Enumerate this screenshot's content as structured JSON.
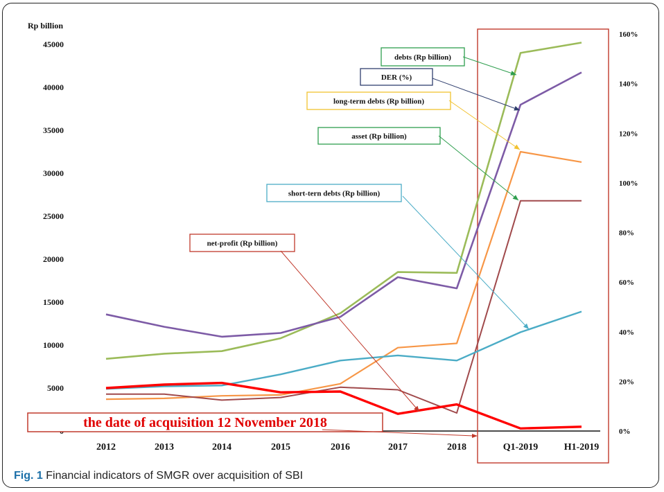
{
  "caption": {
    "label": "Fig. 1",
    "text": "Financial indicators of SMGR over acquisition of SBI"
  },
  "chart_data": {
    "type": "line",
    "title": "",
    "ylabel_left": "Rp billion",
    "ylabel_right": "",
    "ylim_left": [
      0,
      45000
    ],
    "ylim_right": [
      0,
      160
    ],
    "y_ticks_left": [
      0,
      5000,
      10000,
      15000,
      20000,
      25000,
      30000,
      35000,
      40000,
      45000
    ],
    "y_ticks_right": [
      "0%",
      "20%",
      "40%",
      "60%",
      "80%",
      "100%",
      "120%",
      "140%",
      "160%"
    ],
    "categories": [
      "2012",
      "2013",
      "2014",
      "2015",
      "2016",
      "2017",
      "2018",
      "Q1-2019",
      "H1-2019"
    ],
    "series": [
      {
        "name": "debts (Rp billion)",
        "axis": "left",
        "color": "#9bbb59",
        "width": 2.6,
        "values": [
          8400,
          9000,
          9300,
          10800,
          13700,
          18500,
          18400,
          44000,
          45200
        ]
      },
      {
        "name": "DER  (%)",
        "axis": "right",
        "color": "#7d5ba6",
        "width": 2.6,
        "values": [
          47,
          42,
          38,
          39.5,
          46,
          62,
          57.5,
          131.5,
          144.5
        ]
      },
      {
        "name": "long-term debts (Rp billion)",
        "axis": "left",
        "color": "#f79646",
        "width": 2.2,
        "values": [
          3700,
          3800,
          4100,
          4200,
          5500,
          9700,
          10200,
          32500,
          31300
        ]
      },
      {
        "name": "asset (Rp billion)",
        "axis": "left",
        "color": "#a0494b",
        "width": 2.0,
        "values": [
          4300,
          4300,
          3600,
          3900,
          5100,
          4800,
          2100,
          26800,
          26800
        ]
      },
      {
        "name": "short-tern debts (Rp billion)",
        "axis": "left",
        "color": "#4bacc6",
        "width": 2.4,
        "values": [
          4900,
          5200,
          5300,
          6600,
          8200,
          8800,
          8200,
          11500,
          13900
        ]
      },
      {
        "name": "net-profit (Rp billion)",
        "axis": "left",
        "color": "#ff0000",
        "width": 3.4,
        "values": [
          5000,
          5400,
          5600,
          4500,
          4600,
          2000,
          3100,
          300,
          500
        ]
      }
    ],
    "annotations": [
      {
        "text": "debts (Rp billion)",
        "box_color": "#2e9e4e"
      },
      {
        "text": "DER  (%)",
        "box_color": "#2f3e6e"
      },
      {
        "text": "long-term debts (Rp billion)",
        "box_color": "#f2c230"
      },
      {
        "text": "asset (Rp billion)",
        "box_color": "#2e9e4e"
      },
      {
        "text": "short-tern debts (Rp billion)",
        "box_color": "#4bacc6"
      },
      {
        "text": "net-profit (Rp billion)",
        "box_color": "#c0392b"
      }
    ],
    "acquisition_label": "the date of acquisition 12 November 2018",
    "grid": false,
    "legend": "none"
  }
}
